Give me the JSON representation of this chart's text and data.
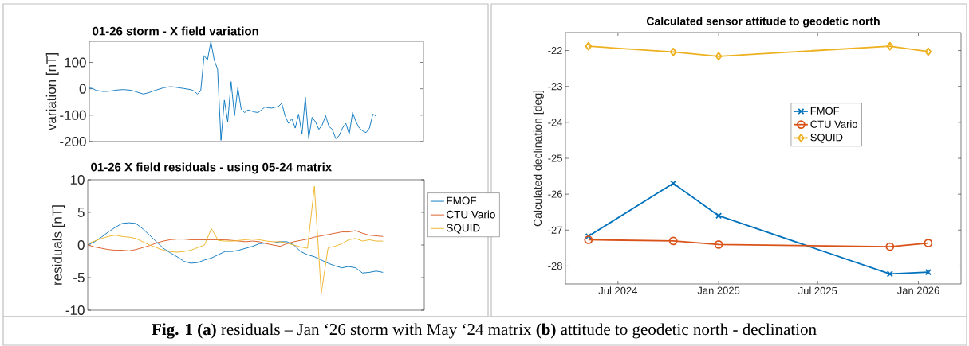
{
  "chart_data": [
    {
      "type": "line",
      "title": "01-26 storm - X field variation",
      "ylabel": "variation [nT]",
      "tick_labels": "y",
      "legend": false,
      "annotations": [
        "**Fig. 1 (a)** residuals – Jan ‘26 storm with May ‘24 matrix **(b)** attitude to geodetic north - declination"
      ],
      "categories": [
        null,
        null,
        null,
        null,
        null,
        null,
        null,
        null,
        null,
        null,
        null,
        null,
        null,
        null,
        null,
        null,
        null,
        null,
        null,
        null,
        null,
        null,
        null,
        null,
        null,
        null,
        null,
        null,
        null,
        null,
        null,
        null,
        null,
        null,
        null,
        null,
        null,
        null,
        null,
        null,
        null,
        null,
        null,
        null,
        null,
        null,
        null,
        null,
        null,
        null,
        null,
        null,
        null,
        null,
        null,
        null,
        null,
        null,
        null,
        null,
        null,
        null,
        null,
        null,
        null,
        null,
        null,
        null,
        null,
        null,
        null,
        null,
        null,
        null,
        null,
        null,
        null,
        null,
        null,
        null,
        null,
        null,
        null,
        null,
        null,
        null,
        null,
        null,
        null,
        null,
        null,
        null,
        null,
        null,
        null,
        null,
        null,
        null,
        null,
        null
      ],
      "ylim": [
        -200,
        180
      ],
      "yticks": [
        -200,
        -100,
        0,
        100
      ],
      "series": [
        {
          "color": "#0072bd",
          "values": [
            3,
            1,
            -6,
            -8,
            -10,
            -10,
            -9,
            -7,
            -5,
            -4,
            -3,
            -4,
            -5,
            -8,
            -12,
            -16,
            -20,
            -17,
            -13,
            -8,
            -4,
            0,
            4,
            6,
            8,
            7,
            5,
            3,
            1,
            -1,
            -3,
            -8,
            -20,
            -8,
            126,
            109,
            179,
            109,
            74,
            -195,
            -43,
            -125,
            27,
            -102,
            4,
            -78,
            -90,
            -80,
            -84,
            -88,
            -90,
            -80,
            -69,
            -72,
            -73,
            -70,
            -67,
            -55,
            -102,
            -131,
            -113,
            -149,
            -96,
            -172,
            -32,
            -189,
            -108,
            -125,
            -154,
            -137,
            -102,
            -143,
            -154,
            -189,
            -178,
            -149,
            -131,
            -172,
            -90,
            -125,
            -149,
            -160,
            -166,
            -149,
            -96,
            -104,
            null,
            null,
            null,
            null,
            null,
            null,
            null,
            null,
            null,
            null,
            null,
            null,
            null,
            null
          ]
        }
      ]
    },
    {
      "type": "line",
      "title": "01-26 X field residuals - using 05-24 matrix",
      "ylabel": "residuals [nT]",
      "tick_labels": "y",
      "legend": "right",
      "categories": [
        null,
        null,
        null,
        null,
        null,
        null,
        null,
        null,
        null,
        null,
        null,
        null,
        null,
        null,
        null,
        null,
        null,
        null,
        null,
        null,
        null,
        null,
        null,
        null,
        null,
        null,
        null,
        null,
        null,
        null,
        null,
        null,
        null,
        null,
        null,
        null,
        null,
        null,
        null,
        null,
        null,
        null,
        null,
        null,
        null,
        null,
        null,
        null,
        null,
        null
      ],
      "ylim": [
        -10,
        10
      ],
      "yticks": [
        -10,
        -5,
        0,
        5,
        10
      ],
      "series": [
        {
          "name": "FMOF",
          "color": "#0072bd",
          "values": [
            0,
            0.5,
            1.2,
            2,
            2.7,
            3.3,
            3.4,
            3.3,
            2.5,
            1.5,
            0.5,
            -0.5,
            -1.2,
            -1.8,
            -2.5,
            -2.8,
            -2.7,
            -2.3,
            -2,
            -1.5,
            -1,
            -1,
            -0.8,
            -0.5,
            -0.2,
            0.2,
            0.3,
            0.3,
            0.5,
            0.5,
            0,
            -1,
            -1.5,
            -1.8,
            -2.3,
            -2.8,
            -3.2,
            -3.5,
            -3.3,
            -3.5,
            -4.3,
            -4.2,
            -4,
            -4.2,
            null,
            null,
            null,
            null,
            null,
            null
          ]
        },
        {
          "name": "CTU Vario",
          "color": "#d95319",
          "values": [
            0,
            -0.3,
            -0.5,
            -0.7,
            -0.8,
            -0.8,
            -0.9,
            -0.7,
            -0.4,
            -0.1,
            0.3,
            0.6,
            0.8,
            0.9,
            0.9,
            0.8,
            0.8,
            0.8,
            0.8,
            0.8,
            0.8,
            0.7,
            0.6,
            0.5,
            0.6,
            0.5,
            0.2,
            0,
            -0.2,
            0.2,
            0.5,
            0.7,
            0.9,
            1.2,
            1.4,
            1.6,
            1.8,
            2,
            2,
            2.2,
            1.8,
            1.5,
            1.4,
            1.3,
            null,
            null,
            null,
            null,
            null,
            null
          ]
        },
        {
          "name": "SQUID",
          "color": "#edb120",
          "values": [
            0.2,
            0.6,
            1,
            1.3,
            1.5,
            1.3,
            1.2,
            1,
            0.5,
            0,
            -0.4,
            -0.8,
            -1,
            -1.1,
            -1,
            -0.8,
            -0.4,
            0,
            2.5,
            0.7,
            0.6,
            0.6,
            0.7,
            0.8,
            0.9,
            0.8,
            0.6,
            0.5,
            0.5,
            0.3,
            0,
            -0.3,
            -0.5,
            9,
            -7.4,
            -0.4,
            -0.2,
            0.2,
            0.8,
            1,
            0.6,
            0.8,
            0.6,
            0.6,
            null,
            null,
            null,
            null,
            null,
            null
          ]
        }
      ]
    },
    {
      "type": "line",
      "title": "Calculated sensor attitude to geodetic north",
      "ylabel": "Calculated declination [deg]",
      "legend": "right",
      "x": [
        "2024-05-08",
        "2024-10-10",
        "2025-01-01",
        "2025-11-10",
        "2026-01-19"
      ],
      "xlim": [
        "2024-03-27",
        "2026-03-20"
      ],
      "xticks": [
        {
          "value": "2024-07-01",
          "label": "Jul 2024"
        },
        {
          "value": "2025-01-01",
          "label": "Jan 2025"
        },
        {
          "value": "2025-07-01",
          "label": "Jul 2025"
        },
        {
          "value": "2026-01-01",
          "label": "Jan 2026"
        }
      ],
      "ylim": [
        -28.5,
        -21.5
      ],
      "yticks": [
        -28,
        -27,
        -26,
        -25,
        -24,
        -23,
        -22
      ],
      "series": [
        {
          "name": "FMOF",
          "color": "#0072bd",
          "marker": "cross",
          "values": [
            -27.17,
            -25.7,
            -26.6,
            -28.22,
            -28.17
          ]
        },
        {
          "name": "CTU Vario",
          "color": "#d95319",
          "marker": "circle",
          "values": [
            -27.27,
            -27.3,
            -27.4,
            -27.46,
            -27.36
          ]
        },
        {
          "name": "SQUID",
          "color": "#edb120",
          "marker": "diamond",
          "values": [
            -21.88,
            -22.04,
            -22.16,
            -21.88,
            -22.03
          ]
        }
      ]
    }
  ]
}
